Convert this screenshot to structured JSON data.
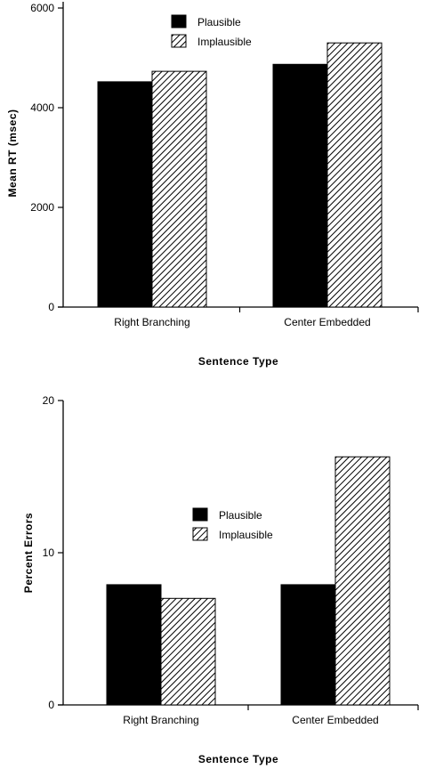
{
  "colors": {
    "plausible": "#000000",
    "implausible_hatch": "#000000",
    "background": "#ffffff"
  },
  "chart_data": [
    {
      "type": "bar",
      "categories": [
        "Right  Branching",
        "Center Embedded"
      ],
      "series": [
        {
          "name": "Plausible",
          "pattern": "solid",
          "values": [
            4520,
            4870
          ]
        },
        {
          "name": "Implausible",
          "pattern": "hatched",
          "values": [
            4730,
            5300
          ]
        }
      ],
      "xlabel": "Sentence   Type",
      "ylabel": "Mean  RT  (msec)",
      "ylim": [
        0,
        7000
      ],
      "yticks": [
        0,
        2000,
        4000,
        6000
      ],
      "ytick_labels": [
        "0",
        "2000",
        "4000",
        "6000"
      ],
      "legend_position": "top-center",
      "grid": false
    },
    {
      "type": "bar",
      "categories": [
        "Right  Branching",
        "Center Embedded"
      ],
      "series": [
        {
          "name": "Plausible",
          "pattern": "solid",
          "values": [
            7.9,
            7.9
          ]
        },
        {
          "name": "Implausible",
          "pattern": "hatched",
          "values": [
            7.0,
            16.3
          ]
        }
      ],
      "xlabel": "Sentence   Type",
      "ylabel": "Percent   Errors",
      "ylim": [
        0,
        20
      ],
      "yticks": [
        0,
        10,
        20
      ],
      "ytick_labels": [
        "0",
        "10",
        "20"
      ],
      "legend_position": "center",
      "grid": false
    }
  ]
}
